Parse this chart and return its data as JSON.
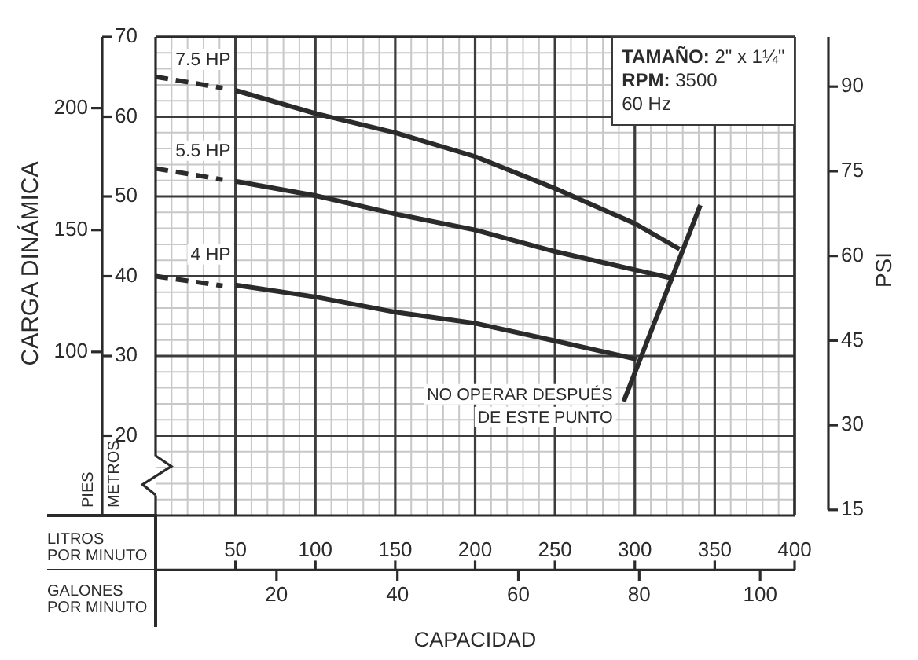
{
  "chart_data": {
    "type": "line",
    "xlabel": "CAPACIDAD",
    "ylabel": "CARGA DINÁMICA",
    "y2label": "PSI",
    "annotations": [
      "TAMAÑO: 2\" x 1¼\"",
      "RPM: 3500",
      "60 Hz",
      {
        "text": "NO OPERAR DESPUÉS DE ESTE PUNTO",
        "x": 293,
        "y": 24.3
      },
      "LITROS POR MINUTO",
      "GALONES POR MINUTO",
      "METROS",
      "PIES"
    ],
    "xlim": [
      0,
      400
    ],
    "xticks": [
      {
        "value": 10,
        "label": null
      },
      {
        "value": 20,
        "label": null
      },
      {
        "value": 30,
        "label": null
      },
      {
        "value": 40,
        "label": null
      },
      50,
      {
        "value": 60,
        "label": null
      },
      {
        "value": 70,
        "label": null
      },
      {
        "value": 80,
        "label": null
      },
      {
        "value": 90,
        "label": null
      },
      100,
      {
        "value": 110,
        "label": null
      },
      {
        "value": 120,
        "label": null
      },
      {
        "value": 130,
        "label": null
      },
      {
        "value": 140,
        "label": null
      },
      150,
      {
        "value": 160,
        "label": null
      },
      {
        "value": 170,
        "label": null
      },
      {
        "value": 180,
        "label": null
      },
      {
        "value": 190,
        "label": null
      },
      200,
      {
        "value": 210,
        "label": null
      },
      {
        "value": 220,
        "label": null
      },
      {
        "value": 230,
        "label": null
      },
      {
        "value": 240,
        "label": null
      },
      250,
      {
        "value": 260,
        "label": null
      },
      {
        "value": 270,
        "label": null
      },
      {
        "value": 280,
        "label": null
      },
      {
        "value": 290,
        "label": null
      },
      300,
      {
        "value": 310,
        "label": null
      },
      {
        "value": 320,
        "label": null
      },
      {
        "value": 330,
        "label": null
      },
      {
        "value": 340,
        "label": null
      },
      350,
      {
        "value": 360,
        "label": null
      },
      {
        "value": 370,
        "label": null
      },
      {
        "value": 380,
        "label": null
      },
      {
        "value": 390,
        "label": null
      },
      400
    ],
    "x2lim": [
      0,
      105.7
    ],
    "x2ticks": [
      20,
      40,
      60,
      80,
      100
    ],
    "ylim": [
      10,
      70
    ],
    "yticks": [
      {
        "value": 12,
        "label": null
      },
      {
        "value": 14,
        "label": null
      },
      {
        "value": 16,
        "label": null
      },
      {
        "value": 18,
        "label": null
      },
      20,
      {
        "value": 22,
        "label": null
      },
      {
        "value": 24,
        "label": null
      },
      {
        "value": 26,
        "label": null
      },
      {
        "value": 28,
        "label": null
      },
      30,
      {
        "value": 32,
        "label": null
      },
      {
        "value": 34,
        "label": null
      },
      {
        "value": 36,
        "label": null
      },
      {
        "value": 38,
        "label": null
      },
      40,
      {
        "value": 42,
        "label": null
      },
      {
        "value": 44,
        "label": null
      },
      {
        "value": 46,
        "label": null
      },
      {
        "value": 48,
        "label": null
      },
      50,
      {
        "value": 52,
        "label": null
      },
      {
        "value": 54,
        "label": null
      },
      {
        "value": 56,
        "label": null
      },
      {
        "value": 58,
        "label": null
      },
      60,
      {
        "value": 62,
        "label": null
      },
      {
        "value": 64,
        "label": null
      },
      {
        "value": 66,
        "label": null
      },
      {
        "value": 68,
        "label": null
      },
      70
    ],
    "y2lim": [
      14,
      98.8
    ],
    "y2ticks": [
      15,
      30,
      45,
      60,
      75,
      90
    ],
    "y3lim": [
      32.9,
      229.2
    ],
    "y3ticks": [
      100,
      150,
      200
    ],
    "grid": true,
    "series": [
      {
        "name": "7.5 HP",
        "color": "#2b2b2b",
        "line_style": "solid",
        "x": [
          50,
          100,
          150,
          200,
          250,
          275,
          300,
          328
        ],
        "values": [
          63.3,
          60.4,
          58.0,
          55.0,
          51.0,
          48.8,
          46.6,
          43.4
        ]
      },
      {
        "color": "#2b2b2b",
        "line_style": "dashed",
        "x": [
          0,
          42
        ],
        "values": [
          65.0,
          63.6
        ]
      },
      {
        "name": "5.5 HP",
        "color": "#2b2b2b",
        "line_style": "solid",
        "x": [
          50,
          100,
          150,
          200,
          250,
          300,
          322
        ],
        "values": [
          51.9,
          50.1,
          47.8,
          45.8,
          43.1,
          40.8,
          39.8
        ]
      },
      {
        "color": "#2b2b2b",
        "line_style": "dashed",
        "x": [
          0,
          42
        ],
        "values": [
          53.5,
          52.1
        ]
      },
      {
        "name": "4 HP",
        "color": "#2b2b2b",
        "line_style": "solid",
        "x": [
          50,
          100,
          150,
          200,
          250,
          301
        ],
        "values": [
          38.9,
          37.4,
          35.5,
          34.1,
          31.9,
          29.6
        ]
      },
      {
        "color": "#2b2b2b",
        "line_style": "dashed",
        "x": [
          0,
          42
        ],
        "values": [
          40.0,
          38.8
        ]
      },
      {
        "color": "#2b2b2b",
        "line_style": "solid",
        "x": [
          293,
          341
        ],
        "values": [
          24.3,
          48.9
        ]
      }
    ]
  }
}
